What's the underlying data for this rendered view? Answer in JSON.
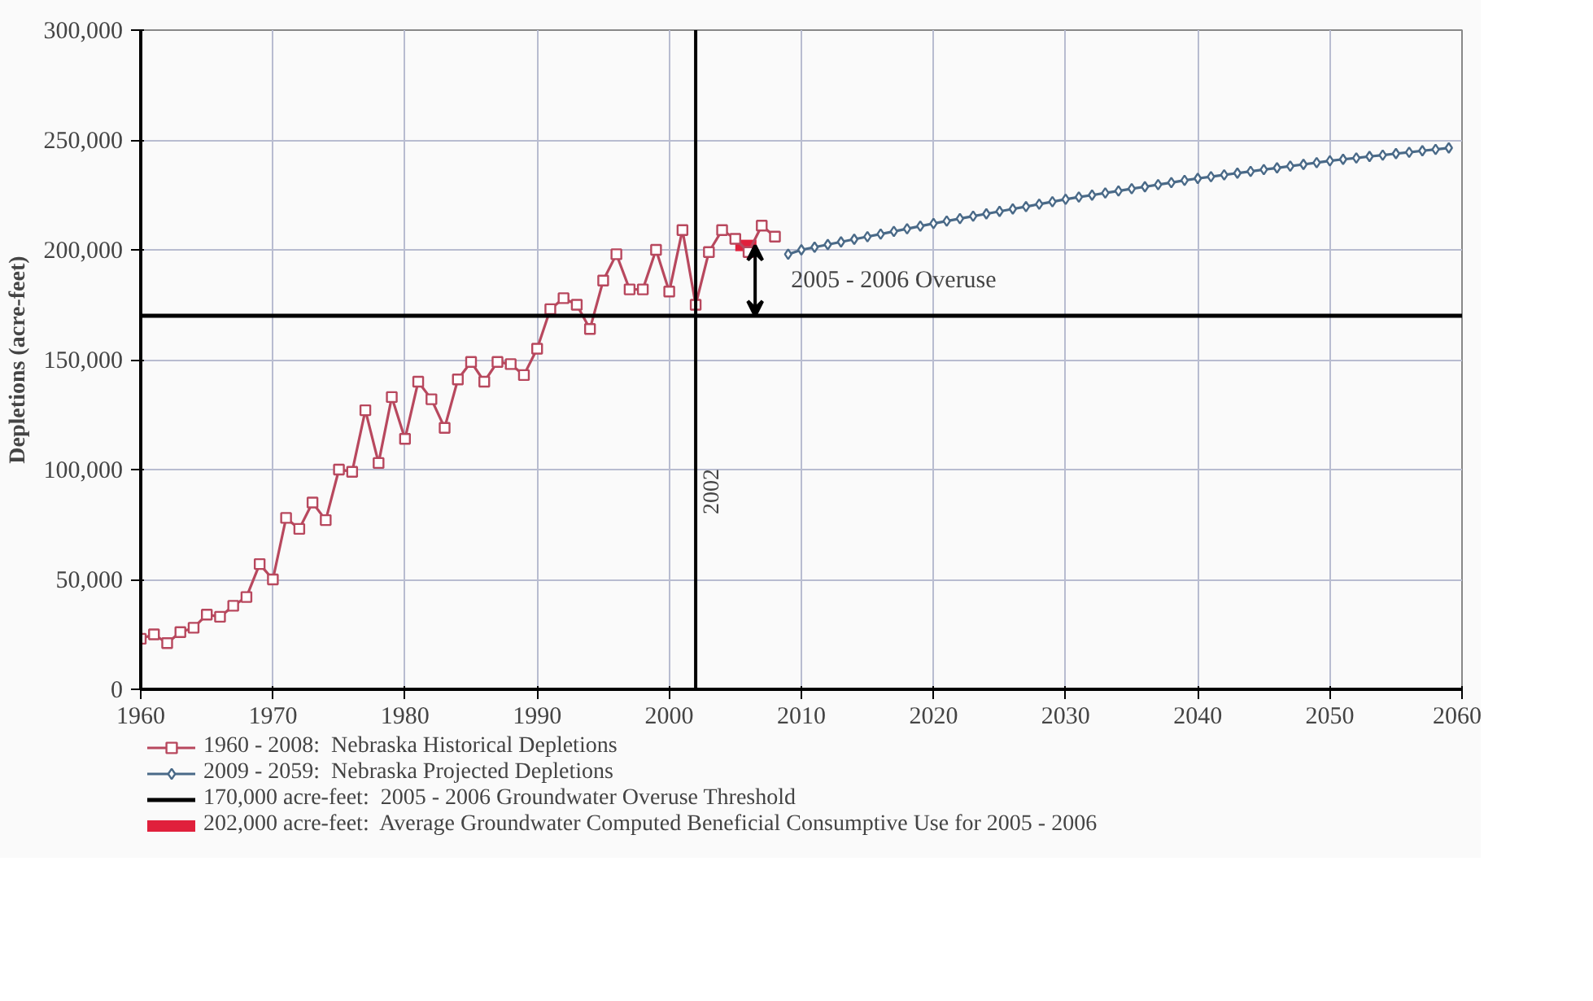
{
  "chart_data": {
    "type": "line",
    "ylabel": "Depletions (acre-feet)",
    "xlim": [
      1960,
      2060
    ],
    "ylim": [
      0,
      300000
    ],
    "xticks": [
      1960,
      1970,
      1980,
      1990,
      2000,
      2010,
      2020,
      2030,
      2040,
      2050,
      2060
    ],
    "yticks": [
      0,
      {
        "value": 50000,
        "label": "50,000"
      },
      {
        "value": 100000,
        "label": "100,000"
      },
      {
        "value": 150000,
        "label": "150,000"
      },
      {
        "value": 200000,
        "label": "200,000"
      },
      {
        "value": 250000,
        "label": "250,000"
      },
      {
        "value": 300000,
        "label": "300,000"
      }
    ],
    "grid": true,
    "legend": "bottom",
    "series": [
      {
        "name": "1960 - 2008:  Nebraska Historical Depletions",
        "color": "#b8485e",
        "marker": "square",
        "x": [
          1960,
          1961,
          1962,
          1963,
          1964,
          1965,
          1966,
          1967,
          1968,
          1969,
          1970,
          1971,
          1972,
          1973,
          1974,
          1975,
          1976,
          1977,
          1978,
          1979,
          1980,
          1981,
          1982,
          1983,
          1984,
          1985,
          1986,
          1987,
          1988,
          1989,
          1990,
          1991,
          1992,
          1993,
          1994,
          1995,
          1996,
          1997,
          1998,
          1999,
          2000,
          2001,
          2002,
          2003,
          2004,
          2005,
          2006,
          2007,
          2008
        ],
        "values": [
          23000,
          25000,
          21000,
          26000,
          28000,
          34000,
          33000,
          38000,
          42000,
          57000,
          50000,
          78000,
          73000,
          85000,
          77000,
          100000,
          99000,
          127000,
          103000,
          133000,
          114000,
          140000,
          132000,
          119000,
          141000,
          149000,
          140000,
          149000,
          148000,
          143000,
          155000,
          173000,
          178000,
          175000,
          164000,
          186000,
          198000,
          182000,
          182000,
          200000,
          181000,
          209000,
          175000,
          199000,
          209000,
          205000,
          199000,
          211000,
          206000
        ]
      },
      {
        "name": "2009 - 2059:  Nebraska Projected Depletions",
        "color": "#4a6a88",
        "marker": "diamond",
        "x": [
          2009,
          2010,
          2011,
          2012,
          2013,
          2014,
          2015,
          2016,
          2017,
          2018,
          2019,
          2020,
          2021,
          2022,
          2023,
          2024,
          2025,
          2026,
          2027,
          2028,
          2029,
          2030,
          2031,
          2032,
          2033,
          2034,
          2035,
          2036,
          2037,
          2038,
          2039,
          2040,
          2041,
          2042,
          2043,
          2044,
          2045,
          2046,
          2047,
          2048,
          2049,
          2050,
          2051,
          2052,
          2053,
          2054,
          2055,
          2056,
          2057,
          2058,
          2059
        ],
        "values": [
          198000,
          200000,
          201200,
          202400,
          203600,
          204800,
          206000,
          207200,
          208400,
          209600,
          210800,
          212000,
          213100,
          214200,
          215300,
          216400,
          217500,
          218600,
          219700,
          220800,
          221900,
          223000,
          224000,
          224900,
          225900,
          226800,
          227800,
          228700,
          229700,
          230600,
          231600,
          232500,
          233300,
          234100,
          234900,
          235700,
          236500,
          237300,
          238100,
          238900,
          239700,
          240500,
          241200,
          241800,
          242500,
          243100,
          243800,
          244400,
          245100,
          245700,
          246400
        ]
      },
      {
        "name": "202,000 acre-feet:  Average Groundwater Computed Beneficial Consumptive Use for 2005 - 2006",
        "color": "#e0203c",
        "marker": "none",
        "x": [
          2005,
          2006.6
        ],
        "values": [
          202000,
          202000
        ]
      }
    ],
    "ref_lines": [
      {
        "axis": "y",
        "value": 170000,
        "label": "170,000 acre-feet:  2005 - 2006 Groundwater Overuse Threshold",
        "color": "#000000"
      },
      {
        "axis": "x",
        "value": 2002,
        "label": "2002",
        "color": "#000000"
      }
    ],
    "annotations": [
      "2005 - 2006  Overuse"
    ]
  }
}
